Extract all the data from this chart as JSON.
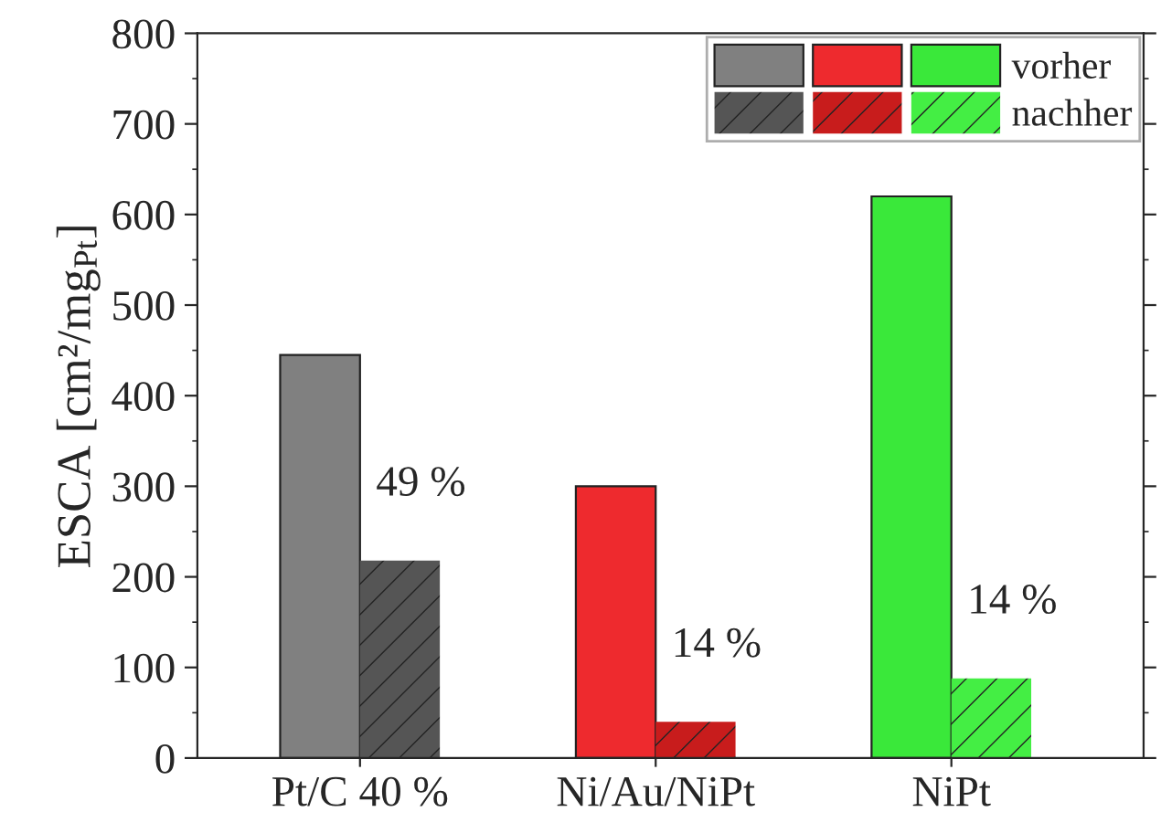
{
  "chart_data": {
    "type": "bar",
    "ylabel": "ESCA [cm²/mg$_{Pt}$]",
    "categories": [
      "Pt/C 40 %",
      "Ni/Au/NiPt",
      "NiPt"
    ],
    "series": [
      {
        "name": "vorher",
        "colors": [
          "#808080",
          "#ee2a2e",
          "#3ae83a"
        ],
        "values": [
          445,
          300,
          620
        ]
      },
      {
        "name": "nachher",
        "colors": [
          "#555555",
          "#c81c1c",
          "#44ee44"
        ],
        "values": [
          218,
          40,
          88
        ]
      }
    ],
    "ylim": [
      0,
      800
    ],
    "yticks": [
      0,
      100,
      200,
      300,
      400,
      500,
      600,
      700,
      800
    ],
    "annotations": [
      {
        "text": "49 %",
        "x": "Pt/C 40 %",
        "y": 218
      },
      {
        "text": "14 %",
        "x": "Ni/Au/NiPt",
        "y": 40
      },
      {
        "text": "14 %",
        "x": "NiPt",
        "y": 88
      }
    ],
    "legend": "top right",
    "grid": false
  }
}
